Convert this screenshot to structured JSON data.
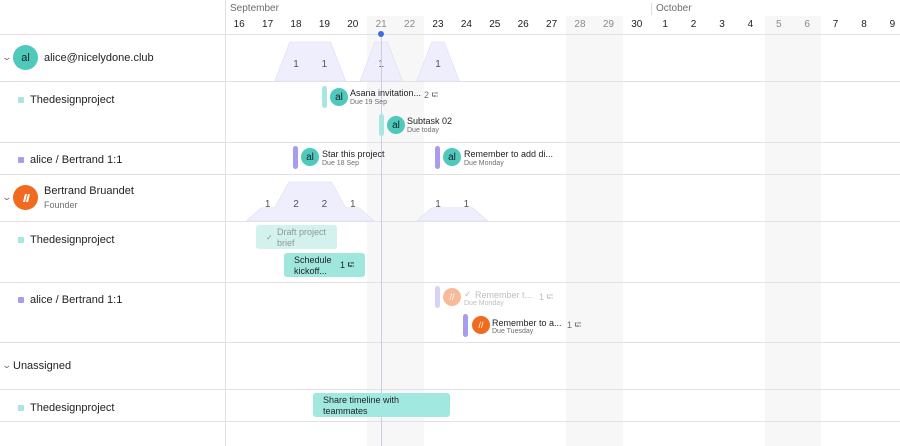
{
  "header": {
    "months": [
      {
        "label": "September",
        "startIndex": 0
      },
      {
        "label": "October",
        "startIndex": 15
      }
    ],
    "days": [
      "16",
      "17",
      "18",
      "19",
      "20",
      "21",
      "22",
      "23",
      "24",
      "25",
      "26",
      "27",
      "28",
      "29",
      "30",
      "1",
      "2",
      "3",
      "4",
      "5",
      "6",
      "7",
      "8",
      "9"
    ],
    "weekendIndexes": [
      5,
      6,
      12,
      13,
      19,
      20
    ],
    "todayIndex": 5
  },
  "colors": {
    "teal": "#4ec9bc",
    "tealLight": "#a6e8e0",
    "purple": "#a79cf0",
    "orange": "#f06a1f",
    "workload": "#eeeefc",
    "today": "#3d6fe0"
  },
  "groups": [
    {
      "name": "alice@nicelydone.club",
      "avatar": "al",
      "workload": {
        "18": 1,
        "19": 1,
        "21": 1,
        "23": 1
      }
    },
    {
      "name": "Bertrand Bruandet",
      "role": "Founder",
      "avatar": "logo",
      "workload": {
        "17": 1,
        "18": 2,
        "19": 2,
        "20": 1,
        "23": 1,
        "24": 1
      }
    },
    {
      "name": "Unassigned"
    }
  ],
  "projects": {
    "design": "Thedesignproject",
    "oneonone": "alice / Bertrand 1:1"
  },
  "tasks": [
    {
      "name": "Asana invitation...",
      "due": "Due 19 Sep",
      "subtasks": "2",
      "avatar": "al"
    },
    {
      "name": "Subtask 02",
      "due": "Due today",
      "avatar": "al"
    },
    {
      "name": "Star this project",
      "due": "Due 18 Sep",
      "avatar": "al"
    },
    {
      "name": "Remember to add di...",
      "due": "Due Monday",
      "avatar": "al"
    },
    {
      "name": "Draft project brief",
      "completed": true
    },
    {
      "name": "Schedule kickoff...",
      "subtasks": "1"
    },
    {
      "name": "Remember t...",
      "due": "Due Monday",
      "subtasks": "1",
      "completed": true
    },
    {
      "name": "Remember to a...",
      "due": "Due Tuesday",
      "subtasks": "1"
    },
    {
      "name": "Share timeline with teammates"
    }
  ]
}
